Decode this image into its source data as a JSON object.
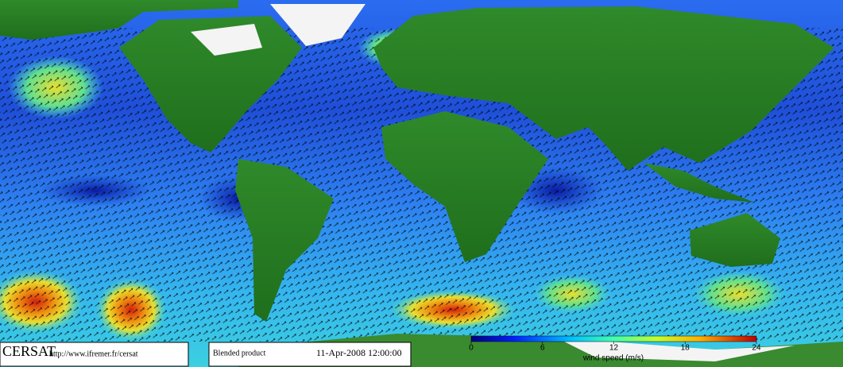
{
  "logo": "CERSAT",
  "url": "http://www.ifremer.fr/cersat",
  "product": "Blended product",
  "timestamp": "11-Apr-2008 12:00:00",
  "colorbar": {
    "label": "wind speed (m/s)",
    "lim": [
      0,
      24
    ],
    "ticks": [
      0,
      6,
      12,
      18,
      24
    ]
  }
}
